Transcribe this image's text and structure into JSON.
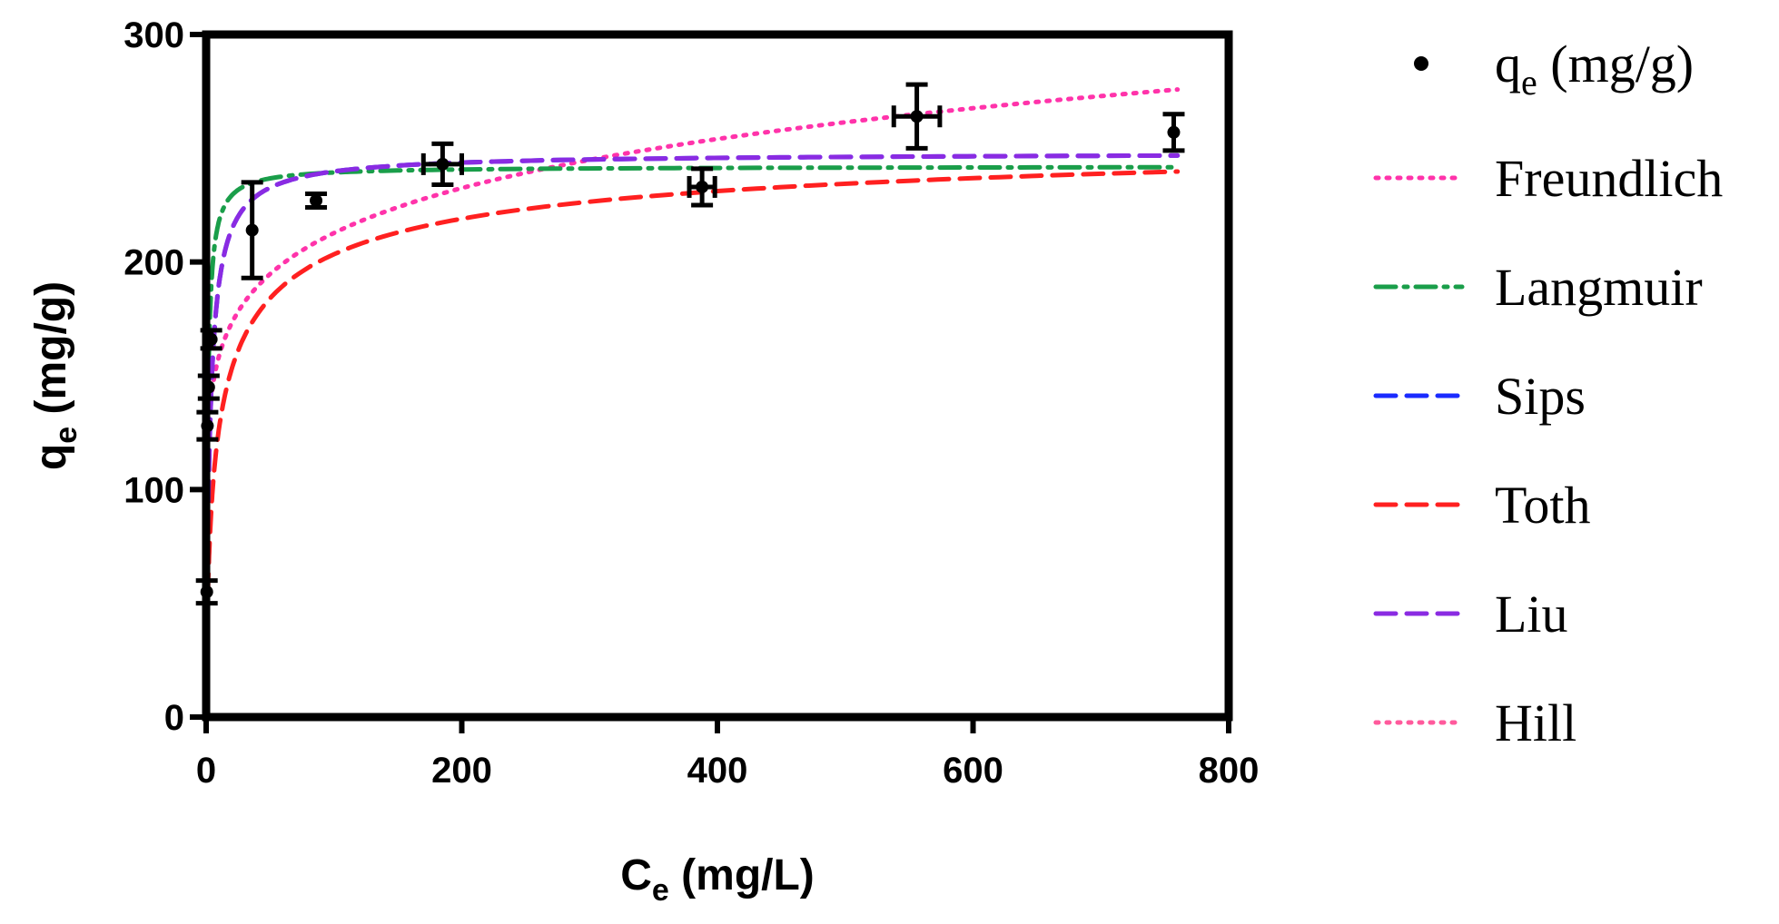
{
  "chart_data": {
    "type": "scatter",
    "xlabel": {
      "main": "C",
      "sub": "e",
      "rest": " (mg/L)"
    },
    "ylabel": {
      "main": "q",
      "sub": "e",
      "rest": " (mg/g)"
    },
    "xlim": [
      0,
      800
    ],
    "ylim": [
      0,
      300
    ],
    "xticks": [
      0,
      200,
      400,
      600,
      800
    ],
    "yticks": [
      0,
      100,
      200,
      300
    ],
    "grid": false,
    "legend_position": "right",
    "data_series": {
      "name": {
        "main": "q",
        "sub": "e",
        "rest": " (mg/g)"
      },
      "color": "#000000",
      "points": [
        {
          "x": 0.5,
          "y": 55,
          "yerr": 5,
          "xerr": 0
        },
        {
          "x": 1,
          "y": 128,
          "yerr": 6,
          "xerr": 0
        },
        {
          "x": 2,
          "y": 145,
          "yerr": 5,
          "xerr": 0
        },
        {
          "x": 4,
          "y": 166,
          "yerr": 4,
          "xerr": 0
        },
        {
          "x": 36,
          "y": 214,
          "yerr": 21,
          "xerr": 0
        },
        {
          "x": 86,
          "y": 227,
          "yerr": 3,
          "xerr": 0
        },
        {
          "x": 185,
          "y": 243,
          "yerr": 9,
          "xerr": 15
        },
        {
          "x": 388,
          "y": 233,
          "yerr": 8,
          "xerr": 10
        },
        {
          "x": 556,
          "y": 264,
          "yerr": 14,
          "xerr": 18
        },
        {
          "x": 757,
          "y": 257,
          "yerr": 8,
          "xerr": 0
        }
      ]
    },
    "fit_series": [
      {
        "name": "Freundlich",
        "color": "#ff33aa",
        "dash": "dot",
        "model": "freundlich",
        "params": {
          "K": 118,
          "n": 0.128
        }
      },
      {
        "name": "Langmuir",
        "color": "#1a9e4a",
        "dash": "dashdot",
        "model": "langmuir",
        "params": {
          "qm": 242,
          "KL": 0.9
        }
      },
      {
        "name": "Sips",
        "color": "#1a2bff",
        "dash": "dash",
        "model": "sips",
        "params": {
          "qm": 248,
          "Ks": 0.35,
          "n": 0.95
        }
      },
      {
        "name": "Toth",
        "color": "#ff2020",
        "dash": "dash",
        "model": "toth",
        "params": {
          "qm": 265,
          "b": 0.5,
          "t": 0.5
        }
      },
      {
        "name": "Liu",
        "color": "#8a2be2",
        "dash": "dash",
        "model": "sips",
        "params": {
          "qm": 248,
          "Ks": 0.35,
          "n": 0.95
        }
      },
      {
        "name": "Hill",
        "color": "#ff5a9c",
        "dash": "dot",
        "model": "none",
        "params": {}
      }
    ]
  }
}
